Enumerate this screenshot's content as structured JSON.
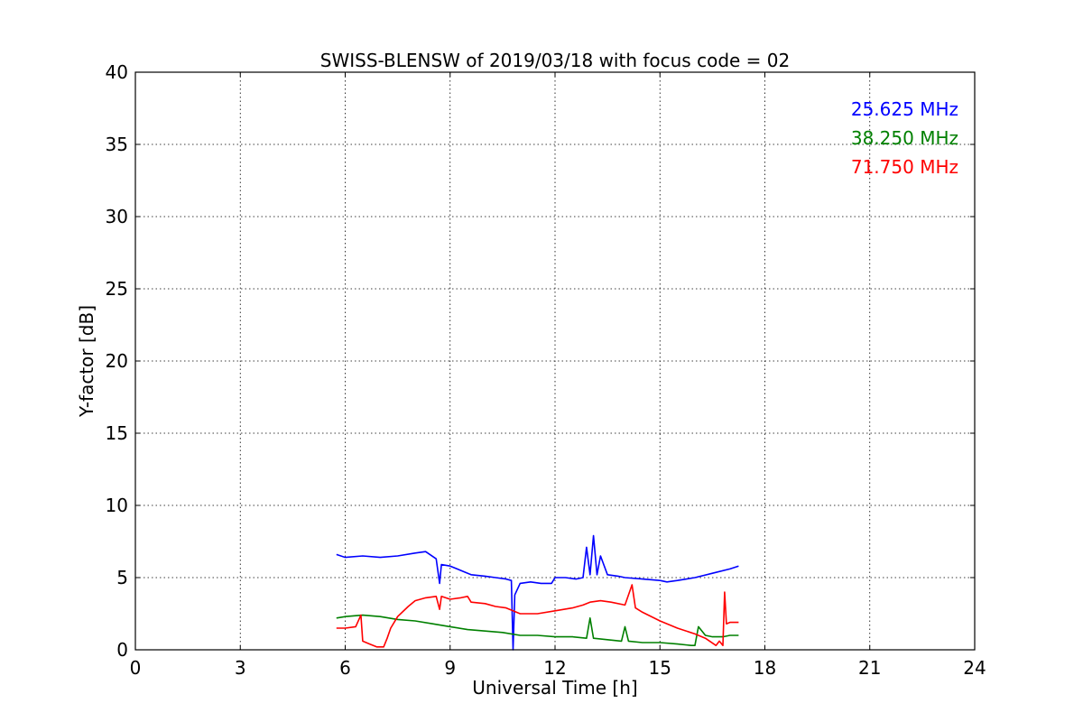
{
  "chart_data": {
    "type": "line",
    "title": "SWISS-BLENSW of 2019/03/18 with focus code = 02",
    "xlabel": "Universal Time [h]",
    "ylabel": "Y-factor [dB]",
    "xlim": [
      0,
      24
    ],
    "ylim": [
      0,
      40
    ],
    "xticks": [
      0,
      3,
      6,
      9,
      12,
      15,
      18,
      21,
      24
    ],
    "yticks": [
      0,
      5,
      10,
      15,
      20,
      25,
      30,
      35,
      40
    ],
    "grid": true,
    "legend_position": "top-right",
    "series": [
      {
        "name": "25.625 MHz",
        "color": "#0000ff",
        "x": [
          5.75,
          6.0,
          6.5,
          7.0,
          7.5,
          8.0,
          8.3,
          8.6,
          8.7,
          8.75,
          9.0,
          9.3,
          9.6,
          10.0,
          10.3,
          10.6,
          10.75,
          10.8,
          10.85,
          11.0,
          11.3,
          11.6,
          11.9,
          12.0,
          12.3,
          12.6,
          12.8,
          12.9,
          13.0,
          13.1,
          13.2,
          13.3,
          13.5,
          13.8,
          14.0,
          14.5,
          15.0,
          15.2,
          15.5,
          16.0,
          16.5,
          17.0,
          17.25
        ],
        "y": [
          6.6,
          6.4,
          6.5,
          6.4,
          6.5,
          6.7,
          6.8,
          6.3,
          4.6,
          5.9,
          5.8,
          5.5,
          5.2,
          5.1,
          5.0,
          4.9,
          4.8,
          0.0,
          3.8,
          4.6,
          4.7,
          4.6,
          4.6,
          5.0,
          5.0,
          4.9,
          5.0,
          7.1,
          5.2,
          7.9,
          5.2,
          6.5,
          5.2,
          5.1,
          5.0,
          4.9,
          4.8,
          4.7,
          4.8,
          5.0,
          5.3,
          5.6,
          5.8
        ]
      },
      {
        "name": "38.250 MHz",
        "color": "#008000",
        "x": [
          5.75,
          6.0,
          6.5,
          7.0,
          7.5,
          8.0,
          8.5,
          9.0,
          9.5,
          10.0,
          10.5,
          11.0,
          11.5,
          12.0,
          12.5,
          12.9,
          13.0,
          13.1,
          13.5,
          13.9,
          14.0,
          14.1,
          14.5,
          15.0,
          15.5,
          15.9,
          16.0,
          16.1,
          16.3,
          16.5,
          16.8,
          17.0,
          17.25
        ],
        "y": [
          2.2,
          2.3,
          2.4,
          2.3,
          2.1,
          2.0,
          1.8,
          1.6,
          1.4,
          1.3,
          1.2,
          1.0,
          1.0,
          0.9,
          0.9,
          0.8,
          2.2,
          0.8,
          0.7,
          0.6,
          1.6,
          0.6,
          0.5,
          0.5,
          0.4,
          0.3,
          0.3,
          1.6,
          1.0,
          0.9,
          0.9,
          1.0,
          1.0
        ]
      },
      {
        "name": "71.750 MHz",
        "color": "#ff0000",
        "x": [
          5.75,
          6.0,
          6.3,
          6.45,
          6.5,
          6.7,
          6.9,
          7.1,
          7.2,
          7.3,
          7.5,
          7.8,
          8.0,
          8.3,
          8.6,
          8.7,
          8.75,
          9.0,
          9.3,
          9.5,
          9.6,
          10.0,
          10.3,
          10.6,
          11.0,
          11.5,
          12.0,
          12.5,
          12.8,
          13.0,
          13.3,
          13.6,
          14.0,
          14.2,
          14.3,
          14.5,
          15.0,
          15.5,
          16.0,
          16.3,
          16.6,
          16.7,
          16.8,
          16.85,
          16.9,
          17.0,
          17.25
        ],
        "y": [
          1.5,
          1.5,
          1.6,
          2.4,
          0.6,
          0.4,
          0.2,
          0.2,
          0.8,
          1.5,
          2.3,
          3.0,
          3.4,
          3.6,
          3.7,
          2.8,
          3.7,
          3.5,
          3.6,
          3.7,
          3.3,
          3.2,
          3.0,
          2.9,
          2.5,
          2.5,
          2.7,
          2.9,
          3.1,
          3.3,
          3.4,
          3.3,
          3.1,
          4.5,
          2.9,
          2.6,
          2.0,
          1.5,
          1.1,
          0.8,
          0.3,
          0.6,
          0.3,
          4.0,
          1.8,
          1.9,
          1.9
        ]
      }
    ]
  }
}
